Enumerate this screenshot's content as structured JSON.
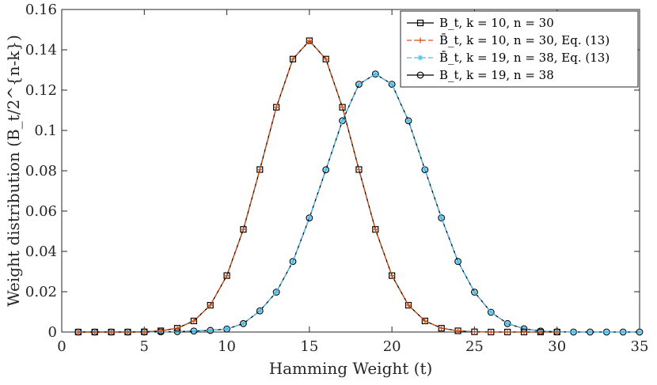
{
  "chart_data": {
    "type": "line",
    "xlabel": "Hamming Weight (t)",
    "ylabel": "Weight distribution (B_t/2^{n-k})",
    "xlim": [
      0,
      35
    ],
    "ylim": [
      0,
      0.16
    ],
    "xticks": [
      0,
      5,
      10,
      15,
      20,
      25,
      30,
      35
    ],
    "xtick_labels": [
      "0",
      "5",
      "10",
      "15",
      "20",
      "25",
      "30",
      "35"
    ],
    "yticks": [
      0,
      0.02,
      0.04,
      0.06,
      0.08,
      0.1,
      0.12,
      0.14,
      0.16
    ],
    "ytick_labels": [
      "0",
      "0.02",
      "0.04",
      "0.06",
      "0.08",
      "0.1",
      "0.12",
      "0.14",
      "0.16"
    ],
    "grid": false,
    "legend_position": "top-right",
    "series": [
      {
        "name": "B_t, k = 10, n = 30",
        "color": "#000000",
        "line_style": "solid",
        "marker": "square",
        "x": [
          1,
          2,
          3,
          4,
          5,
          6,
          7,
          8,
          9,
          10,
          11,
          12,
          13,
          14,
          15,
          16,
          17,
          18,
          19,
          20,
          21,
          22,
          23,
          24,
          25,
          26,
          27,
          28,
          29,
          30
        ],
        "values": [
          0,
          0,
          0,
          0,
          0.0001,
          0.0006,
          0.0019,
          0.0055,
          0.0133,
          0.028,
          0.0509,
          0.0806,
          0.1115,
          0.1354,
          0.1445,
          0.1354,
          0.1115,
          0.0806,
          0.0509,
          0.028,
          0.0133,
          0.0055,
          0.0019,
          0.0006,
          0.0001,
          0,
          0,
          0,
          0,
          0
        ]
      },
      {
        "name": "B̄_t, k = 10, n = 30, Eq. (13)",
        "color": "#D95319",
        "line_style": "dashed",
        "marker": "plus",
        "x": [
          1,
          2,
          3,
          4,
          5,
          6,
          7,
          8,
          9,
          10,
          11,
          12,
          13,
          14,
          15,
          16,
          17,
          18,
          19,
          20,
          21,
          22,
          23,
          24,
          25,
          26,
          27,
          28,
          29,
          30
        ],
        "values": [
          0,
          0,
          0,
          0,
          0.0001,
          0.0006,
          0.0019,
          0.0055,
          0.0133,
          0.028,
          0.0509,
          0.0806,
          0.1115,
          0.1354,
          0.1445,
          0.1354,
          0.1115,
          0.0806,
          0.0509,
          0.028,
          0.0133,
          0.0055,
          0.0019,
          0.0006,
          0.0001,
          0,
          0,
          0,
          0,
          0
        ]
      },
      {
        "name": "B̄_t, k = 19, n = 38, Eq. (13)",
        "color": "#4DBEEE",
        "line_style": "dashed",
        "marker": "asterisk",
        "x": [
          1,
          2,
          3,
          4,
          5,
          6,
          7,
          8,
          9,
          10,
          11,
          12,
          13,
          14,
          15,
          16,
          17,
          18,
          19,
          20,
          21,
          22,
          23,
          24,
          25,
          26,
          27,
          28,
          29,
          30,
          31,
          32,
          33,
          34,
          35
        ],
        "values": [
          0,
          0,
          0,
          0,
          0,
          0.0001,
          0.0002,
          0.0005,
          0.0008,
          0.0015,
          0.0042,
          0.0105,
          0.0198,
          0.035,
          0.0566,
          0.0805,
          0.1048,
          0.1229,
          0.128,
          0.1229,
          0.1048,
          0.0805,
          0.0566,
          0.035,
          0.0198,
          0.0098,
          0.0042,
          0.0016,
          0.0005,
          0.0001,
          0,
          0,
          0,
          0,
          0
        ]
      },
      {
        "name": "B_t, k = 19, n = 38",
        "color": "#000000",
        "line_style": "solid",
        "marker": "circle",
        "x": [
          1,
          2,
          3,
          4,
          5,
          6,
          7,
          8,
          9,
          10,
          11,
          12,
          13,
          14,
          15,
          16,
          17,
          18,
          19,
          20,
          21,
          22,
          23,
          24,
          25,
          26,
          27,
          28,
          29,
          30,
          31,
          32,
          33,
          34,
          35
        ],
        "values": [
          0,
          0,
          0,
          0,
          0,
          0.0001,
          0.0002,
          0.0005,
          0.0008,
          0.0015,
          0.0042,
          0.0105,
          0.0198,
          0.035,
          0.0566,
          0.0805,
          0.1048,
          0.1229,
          0.128,
          0.1229,
          0.1048,
          0.0805,
          0.0566,
          0.035,
          0.0198,
          0.0098,
          0.0042,
          0.0016,
          0.0005,
          0.0001,
          0,
          0,
          0,
          0,
          0
        ]
      }
    ]
  }
}
